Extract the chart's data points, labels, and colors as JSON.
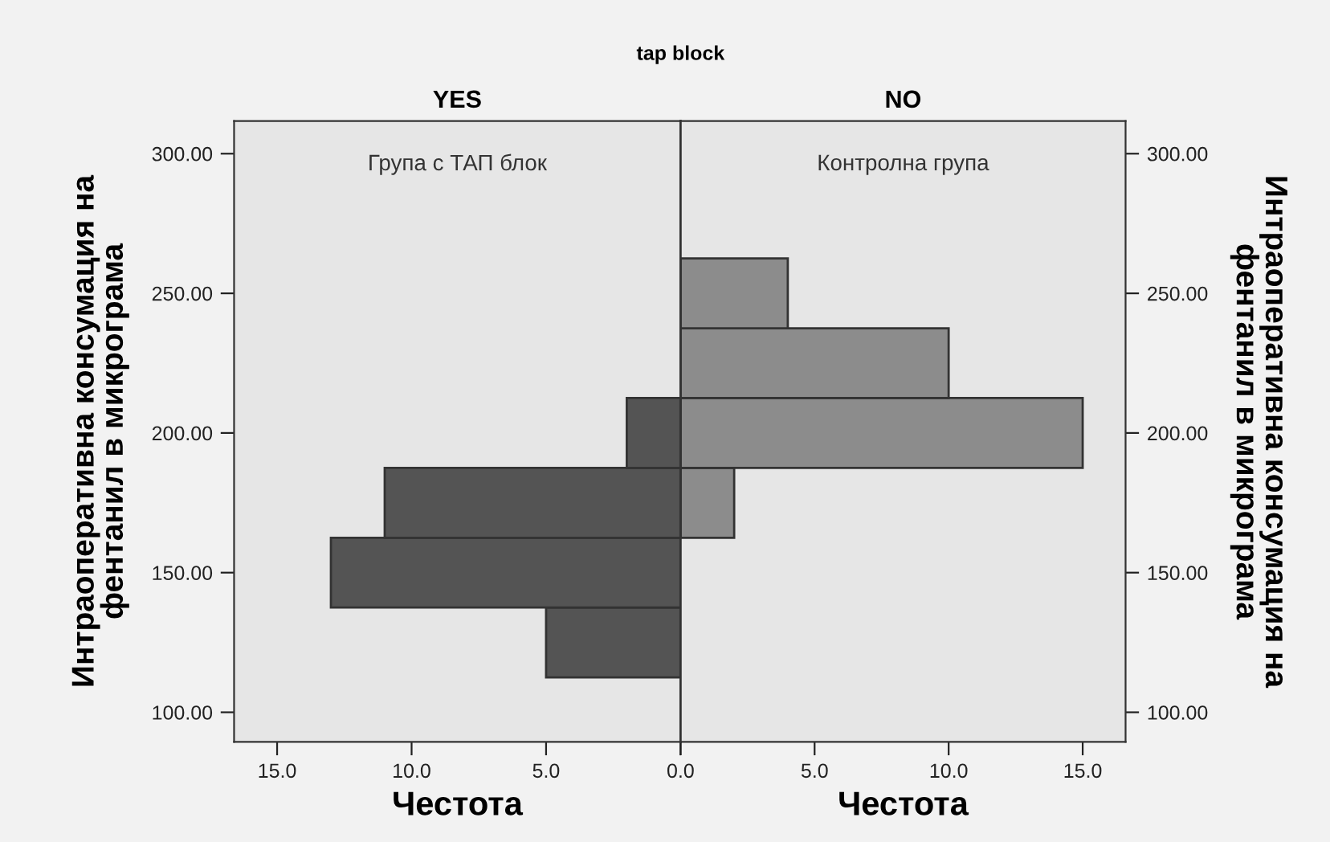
{
  "chart_data": [
    {
      "type": "histogram",
      "orientation": "horizontal",
      "title": "YES",
      "xlabel": "Честота",
      "ylabel": "Интраоперативна консумация на\nфентанил в микрограма",
      "annotations": [
        "tap block",
        "Група с ТАП блок"
      ],
      "bins": [
        112.5,
        137.5,
        162.5,
        187.5,
        212.5
      ],
      "values": [
        5,
        13,
        11,
        2
      ],
      "color": "#545454",
      "xlim": [
        16.6,
        0
      ],
      "xticks": [
        {
          "value": 15,
          "label": "15.0"
        },
        {
          "value": 10,
          "label": "10.0"
        },
        {
          "value": 5,
          "label": "5.0"
        },
        {
          "value": 0,
          "label": null
        }
      ],
      "ylim": [
        89.4,
        311.7
      ],
      "yticks": [
        {
          "value": 100,
          "label": "100.00"
        },
        {
          "value": 150,
          "label": "150.00"
        },
        {
          "value": 200,
          "label": "200.00"
        },
        {
          "value": 250,
          "label": "250.00"
        },
        {
          "value": 300,
          "label": "300.00"
        }
      ],
      "legend": false
    },
    {
      "type": "histogram",
      "orientation": "horizontal",
      "title": "NO",
      "xlabel": "Честота",
      "ylabel": "Интраоперативна консумация на\nфентанил в микрограма",
      "annotations": [
        "Контролна група"
      ],
      "bins": [
        162.5,
        187.5,
        212.5,
        237.5,
        262.5
      ],
      "values": [
        2,
        15,
        10,
        4
      ],
      "color": "#8c8c8c",
      "xlim": [
        0,
        16.6
      ],
      "xticks": [
        {
          "value": 0,
          "label": "0.0"
        },
        {
          "value": 5,
          "label": "5.0"
        },
        {
          "value": 10,
          "label": "10.0"
        },
        {
          "value": 15,
          "label": "15.0"
        }
      ],
      "ylim": [
        89.4,
        311.7
      ],
      "yticks": [
        {
          "value": 100,
          "label": "100.00"
        },
        {
          "value": 150,
          "label": "150.00"
        },
        {
          "value": 200,
          "label": "200.00"
        },
        {
          "value": 250,
          "label": "250.00"
        },
        {
          "value": 300,
          "label": "300.00"
        }
      ],
      "legend": false
    }
  ]
}
